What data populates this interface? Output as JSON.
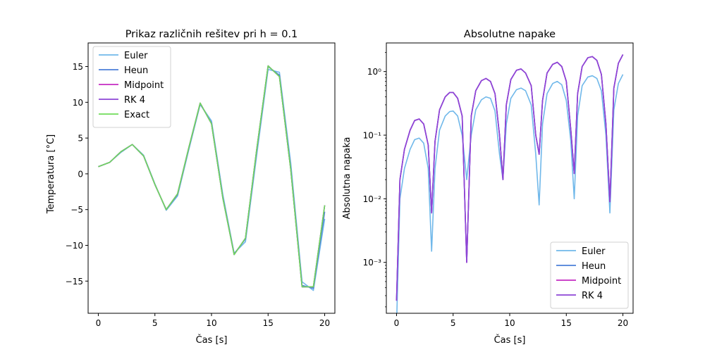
{
  "chart_data": [
    {
      "type": "line",
      "title": "Prikaz različnih rešitev pri h = 0.1",
      "xlabel": "Čas [s]",
      "ylabel": "Temperatura [°C]",
      "xlim": [
        -0.9,
        20.9
      ],
      "ylim": [
        -19.5,
        18.3
      ],
      "xticks": [
        0,
        5,
        10,
        15,
        20
      ],
      "xtick_labels": [
        "0",
        "5",
        "10",
        "15",
        "20"
      ],
      "yticks": [
        -15,
        -10,
        -5,
        0,
        5,
        10,
        15
      ],
      "ytick_labels": [
        "−15",
        "−10",
        "−5",
        "0",
        "5",
        "10",
        "15"
      ],
      "legend_position": "top-left",
      "series": [
        {
          "name": "Euler",
          "color": "#70b8ea",
          "x": [
            0,
            1,
            2,
            3,
            4,
            5,
            6,
            7,
            8,
            9,
            10,
            11,
            12,
            13,
            14,
            15,
            16,
            17,
            18,
            19,
            20
          ],
          "y": [
            1.0,
            1.6,
            3.0,
            4.1,
            2.6,
            -1.4,
            -5.1,
            -3.1,
            3.4,
            9.7,
            7.4,
            -2.9,
            -11.1,
            -9.5,
            2.7,
            14.6,
            14.2,
            1.5,
            -15.1,
            -16.3,
            -6.3
          ]
        },
        {
          "name": "Heun",
          "color": "#4c7fd8",
          "x": [
            0,
            1,
            2,
            3,
            4,
            5,
            6,
            7,
            8,
            9,
            10,
            11,
            12,
            13,
            14,
            15,
            16,
            17,
            18,
            19,
            20
          ],
          "y": [
            1.0,
            1.6,
            3.1,
            4.1,
            2.5,
            -1.5,
            -5.0,
            -2.9,
            3.6,
            9.8,
            7.1,
            -3.3,
            -11.2,
            -9.1,
            3.3,
            15.0,
            13.8,
            0.8,
            -15.6,
            -16.0,
            -5.3
          ]
        },
        {
          "name": "Midpoint",
          "color": "#c42bc2",
          "x": [
            0,
            1,
            2,
            3,
            4,
            5,
            6,
            7,
            8,
            9,
            10,
            11,
            12,
            13,
            14,
            15,
            16,
            17,
            18,
            19,
            20
          ],
          "y": [
            1.0,
            1.6,
            3.1,
            4.1,
            2.5,
            -1.5,
            -5.0,
            -2.8,
            3.7,
            9.9,
            7.0,
            -3.4,
            -11.3,
            -9.0,
            3.5,
            15.1,
            13.6,
            0.6,
            -15.8,
            -15.8,
            -4.4
          ]
        },
        {
          "name": "RK 4",
          "color": "#8d45d6",
          "x": [
            0,
            1,
            2,
            3,
            4,
            5,
            6,
            7,
            8,
            9,
            10,
            11,
            12,
            13,
            14,
            15,
            16,
            17,
            18,
            19,
            20
          ],
          "y": [
            1.0,
            1.6,
            3.1,
            4.1,
            2.5,
            -1.5,
            -5.0,
            -2.8,
            3.7,
            9.9,
            7.0,
            -3.4,
            -11.3,
            -9.0,
            3.5,
            15.1,
            13.6,
            0.6,
            -15.8,
            -15.8,
            -4.4
          ]
        },
        {
          "name": "Exact",
          "color": "#6fdc5a",
          "x": [
            0,
            1,
            2,
            3,
            4,
            5,
            6,
            7,
            8,
            9,
            10,
            11,
            12,
            13,
            14,
            15,
            16,
            17,
            18,
            19,
            20
          ],
          "y": [
            1.0,
            1.6,
            3.1,
            4.1,
            2.5,
            -1.5,
            -5.0,
            -2.8,
            3.7,
            9.9,
            7.0,
            -3.4,
            -11.3,
            -9.0,
            3.5,
            15.1,
            13.6,
            0.6,
            -15.8,
            -15.8,
            -4.4
          ]
        }
      ]
    },
    {
      "type": "line",
      "title": "Absolutne napake",
      "xlabel": "Čas [s]",
      "ylabel": "Absolutna napaka",
      "yscale": "log",
      "xlim": [
        -0.9,
        20.9
      ],
      "ylim_log10": [
        -3.8,
        0.45
      ],
      "xticks": [
        0,
        5,
        10,
        15,
        20
      ],
      "xtick_labels": [
        "0",
        "5",
        "10",
        "15",
        "20"
      ],
      "yticks_log10": [
        -3,
        -2,
        -1,
        0
      ],
      "ytick_labels": [
        "10⁻³",
        "10⁻²",
        "10⁻¹",
        "10⁰"
      ],
      "legend_position": "bottom-right",
      "series": [
        {
          "name": "Euler",
          "color": "#70b8ea",
          "x": [
            0,
            0.3,
            0.7,
            1.2,
            1.6,
            2.0,
            2.4,
            2.8,
            3.1,
            3.4,
            3.8,
            4.3,
            4.7,
            5.0,
            5.4,
            5.8,
            6.2,
            6.6,
            7.0,
            7.5,
            7.9,
            8.3,
            8.7,
            9.1,
            9.4,
            9.7,
            10.1,
            10.6,
            11.0,
            11.4,
            11.9,
            12.3,
            12.6,
            12.9,
            13.3,
            13.8,
            14.2,
            14.6,
            15.0,
            15.4,
            15.7,
            16.0,
            16.4,
            16.9,
            17.3,
            17.7,
            18.1,
            18.5,
            18.85,
            19.2,
            19.6,
            20.0
          ],
          "y": [
            0.0001,
            0.01,
            0.03,
            0.06,
            0.085,
            0.09,
            0.075,
            0.03,
            0.0015,
            0.03,
            0.12,
            0.2,
            0.235,
            0.24,
            0.2,
            0.1,
            0.02,
            0.1,
            0.25,
            0.36,
            0.4,
            0.38,
            0.24,
            0.05,
            0.02,
            0.15,
            0.38,
            0.52,
            0.55,
            0.5,
            0.3,
            0.05,
            0.008,
            0.15,
            0.45,
            0.65,
            0.7,
            0.62,
            0.35,
            0.08,
            0.01,
            0.2,
            0.6,
            0.82,
            0.86,
            0.78,
            0.5,
            0.1,
            0.006,
            0.25,
            0.65,
            0.9
          ]
        },
        {
          "name": "Heun",
          "color": "#4c7fd8",
          "x": [
            0,
            0.3,
            0.7,
            1.2,
            1.6,
            2.0,
            2.4,
            2.8,
            3.1,
            3.4,
            3.8,
            4.3,
            4.7,
            5.0,
            5.4,
            5.8,
            6.2,
            6.6,
            7.0,
            7.5,
            7.9,
            8.3,
            8.7,
            9.1,
            9.4,
            9.7,
            10.1,
            10.6,
            11.0,
            11.4,
            11.9,
            12.3,
            12.6,
            12.9,
            13.3,
            13.8,
            14.2,
            14.6,
            15.0,
            15.4,
            15.7,
            16.0,
            16.4,
            16.9,
            17.3,
            17.7,
            18.1,
            18.5,
            18.85,
            19.2,
            19.6,
            20.0
          ],
          "y": [
            0.00025,
            0.02,
            0.06,
            0.12,
            0.17,
            0.18,
            0.15,
            0.07,
            0.006,
            0.08,
            0.25,
            0.4,
            0.47,
            0.47,
            0.38,
            0.2,
            0.001,
            0.2,
            0.5,
            0.72,
            0.78,
            0.7,
            0.45,
            0.1,
            0.02,
            0.3,
            0.75,
            1.05,
            1.1,
            0.95,
            0.6,
            0.1,
            0.05,
            0.35,
            0.95,
            1.3,
            1.4,
            1.2,
            0.7,
            0.12,
            0.025,
            0.45,
            1.2,
            1.65,
            1.72,
            1.5,
            0.9,
            0.15,
            0.009,
            0.55,
            1.35,
            1.85
          ]
        },
        {
          "name": "Midpoint",
          "color": "#c42bc2",
          "x": [
            0,
            0.3,
            0.7,
            1.2,
            1.6,
            2.0,
            2.4,
            2.8,
            3.1,
            3.4,
            3.8,
            4.3,
            4.7,
            5.0,
            5.4,
            5.8,
            6.2,
            6.6,
            7.0,
            7.5,
            7.9,
            8.3,
            8.7,
            9.1,
            9.4,
            9.7,
            10.1,
            10.6,
            11.0,
            11.4,
            11.9,
            12.3,
            12.6,
            12.9,
            13.3,
            13.8,
            14.2,
            14.6,
            15.0,
            15.4,
            15.7,
            16.0,
            16.4,
            16.9,
            17.3,
            17.7,
            18.1,
            18.5,
            18.85,
            19.2,
            19.6,
            20.0
          ],
          "y": [
            0.00025,
            0.02,
            0.06,
            0.12,
            0.17,
            0.18,
            0.15,
            0.07,
            0.006,
            0.08,
            0.25,
            0.4,
            0.47,
            0.47,
            0.38,
            0.2,
            0.001,
            0.2,
            0.5,
            0.72,
            0.78,
            0.7,
            0.45,
            0.1,
            0.02,
            0.3,
            0.75,
            1.05,
            1.1,
            0.95,
            0.6,
            0.1,
            0.05,
            0.35,
            0.95,
            1.3,
            1.4,
            1.2,
            0.7,
            0.12,
            0.025,
            0.45,
            1.2,
            1.65,
            1.72,
            1.5,
            0.9,
            0.15,
            0.009,
            0.55,
            1.35,
            1.85
          ]
        },
        {
          "name": "RK 4",
          "color": "#8d45d6",
          "x": [
            0,
            0.3,
            0.7,
            1.2,
            1.6,
            2.0,
            2.4,
            2.8,
            3.1,
            3.4,
            3.8,
            4.3,
            4.7,
            5.0,
            5.4,
            5.8,
            6.2,
            6.6,
            7.0,
            7.5,
            7.9,
            8.3,
            8.7,
            9.1,
            9.4,
            9.7,
            10.1,
            10.6,
            11.0,
            11.4,
            11.9,
            12.3,
            12.6,
            12.9,
            13.3,
            13.8,
            14.2,
            14.6,
            15.0,
            15.4,
            15.7,
            16.0,
            16.4,
            16.9,
            17.3,
            17.7,
            18.1,
            18.5,
            18.85,
            19.2,
            19.6,
            20.0
          ],
          "y": [
            0.00025,
            0.02,
            0.06,
            0.12,
            0.17,
            0.18,
            0.15,
            0.07,
            0.006,
            0.08,
            0.25,
            0.4,
            0.47,
            0.47,
            0.38,
            0.2,
            0.001,
            0.2,
            0.5,
            0.72,
            0.78,
            0.7,
            0.45,
            0.1,
            0.02,
            0.3,
            0.75,
            1.05,
            1.1,
            0.95,
            0.6,
            0.1,
            0.05,
            0.35,
            0.95,
            1.3,
            1.4,
            1.2,
            0.7,
            0.12,
            0.025,
            0.45,
            1.2,
            1.65,
            1.72,
            1.5,
            0.9,
            0.15,
            0.009,
            0.55,
            1.35,
            1.85
          ]
        }
      ]
    }
  ]
}
